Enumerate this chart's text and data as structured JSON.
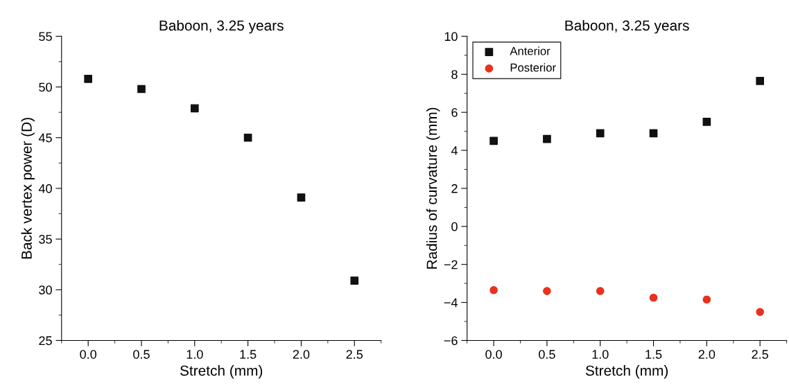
{
  "chart_data": [
    {
      "type": "scatter",
      "title": "Baboon, 3.25 years",
      "xlabel": "Stretch (mm)",
      "ylabel": "Back vertex power (D)",
      "x": [
        0,
        0.5,
        1,
        1.5,
        2,
        2.5
      ],
      "series": [
        {
          "color": "#111111",
          "values": [
            50.8,
            49.8,
            47.9,
            45.0,
            39.1,
            30.9
          ],
          "marker": "square"
        }
      ],
      "xlim": [
        -0.25,
        2.75
      ],
      "xticks": [
        {
          "value": 0,
          "label": "0.0"
        },
        {
          "value": 0.5,
          "label": "0.5"
        },
        {
          "value": 1,
          "label": "1.0"
        },
        {
          "value": 1.5,
          "label": "1.5"
        },
        {
          "value": 2,
          "label": "2.0"
        },
        {
          "value": 2.5,
          "label": "2.5"
        }
      ],
      "ylim": [
        25,
        55
      ],
      "yticks": [
        25,
        30,
        35,
        40,
        45,
        50,
        55
      ],
      "grid": false,
      "legend": false
    },
    {
      "type": "scatter",
      "title": "Baboon, 3.25 years",
      "xlabel": "Stretch (mm)",
      "ylabel": "Radius of curvature (mm)",
      "x": [
        0,
        0.5,
        1,
        1.5,
        2,
        2.5
      ],
      "series": [
        {
          "name": "Anterior",
          "color": "#111111",
          "values": [
            4.5,
            4.6,
            4.9,
            4.9,
            5.5,
            7.65
          ],
          "marker": "square"
        },
        {
          "name": "Posterior",
          "color": "#e8321e",
          "values": [
            -3.35,
            -3.4,
            -3.4,
            -3.75,
            -3.85,
            -4.5
          ],
          "marker": "circle"
        }
      ],
      "xlim": [
        -0.25,
        2.75
      ],
      "xticks": [
        {
          "value": 0,
          "label": "0.0"
        },
        {
          "value": 0.5,
          "label": "0.5"
        },
        {
          "value": 1,
          "label": "1.0"
        },
        {
          "value": 1.5,
          "label": "1.5"
        },
        {
          "value": 2,
          "label": "2.0"
        },
        {
          "value": 2.5,
          "label": "2.5"
        }
      ],
      "ylim": [
        -6,
        10
      ],
      "yticks": [
        {
          "value": -6,
          "label": "−6"
        },
        {
          "value": -4,
          "label": "−4"
        },
        {
          "value": -2,
          "label": "−2"
        },
        0,
        2,
        4,
        6,
        8,
        10
      ],
      "grid": false,
      "legend": "top left"
    }
  ]
}
